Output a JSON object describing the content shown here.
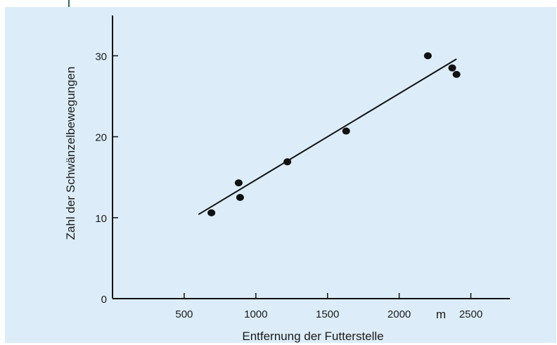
{
  "chart_data": {
    "type": "scatter",
    "xlabel": "Entfernung der Futterstelle",
    "ylabel": "Zahl der Schwänzelbewegungen",
    "x_unit": "m",
    "xlim": [
      0,
      2700
    ],
    "ylim": [
      0,
      35
    ],
    "x_ticks": [
      500,
      1000,
      1500,
      2000,
      2500
    ],
    "y_ticks": [
      0,
      10,
      20,
      30
    ],
    "grid": false,
    "points": [
      {
        "x": 690,
        "y": 10.6
      },
      {
        "x": 880,
        "y": 14.3
      },
      {
        "x": 890,
        "y": 12.5
      },
      {
        "x": 1220,
        "y": 16.9
      },
      {
        "x": 1630,
        "y": 20.7
      },
      {
        "x": 2200,
        "y": 30.0
      },
      {
        "x": 2370,
        "y": 28.5
      },
      {
        "x": 2400,
        "y": 27.7
      }
    ],
    "trend_line": {
      "x": [
        600,
        2400
      ],
      "y": [
        10.4,
        29.6
      ]
    },
    "colors": {
      "background": "#dcedf9",
      "points": "#111111",
      "axes": "#111111"
    }
  }
}
